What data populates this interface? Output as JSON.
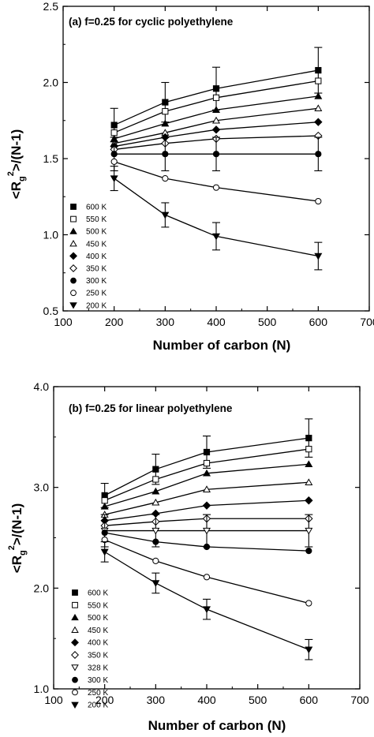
{
  "chart_data": [
    {
      "type": "line",
      "title": "(a) f=0.25 for cyclic polyethylene",
      "xlabel": "Number of carbon (N)",
      "ylabel": "<R_g^2>/(N-1)",
      "ylabel_parts": {
        "main": "<R",
        "sub": "g",
        "sup": "2",
        "tail": ">/(N-1)"
      },
      "xlim": [
        100,
        700
      ],
      "ylim": [
        0.5,
        2.5
      ],
      "x_ticks": [
        100,
        200,
        300,
        400,
        500,
        600,
        700
      ],
      "y_ticks": [
        "0.5",
        "1.0",
        "1.5",
        "2.0",
        "2.5"
      ],
      "x": [
        200,
        300,
        400,
        600
      ],
      "grid": false,
      "legend_position": "lower-left",
      "series": [
        {
          "name": "600 K",
          "marker": "square-filled",
          "values": [
            1.72,
            1.87,
            1.96,
            2.08
          ],
          "errors": [
            0.11,
            0.13,
            0.14,
            0.15
          ]
        },
        {
          "name": "550 K",
          "marker": "square-open",
          "values": [
            1.67,
            1.81,
            1.9,
            2.01
          ]
        },
        {
          "name": "500 K",
          "marker": "triangle-filled",
          "values": [
            1.63,
            1.73,
            1.82,
            1.91
          ]
        },
        {
          "name": "450 K",
          "marker": "triangle-open",
          "values": [
            1.6,
            1.67,
            1.75,
            1.83
          ]
        },
        {
          "name": "400 K",
          "marker": "diamond-filled",
          "values": [
            1.58,
            1.64,
            1.69,
            1.74
          ]
        },
        {
          "name": "350 K",
          "marker": "diamond-open",
          "values": [
            1.56,
            1.6,
            1.63,
            1.65
          ]
        },
        {
          "name": "300 K",
          "marker": "circle-filled",
          "values": [
            1.53,
            1.53,
            1.53,
            1.53
          ],
          "errors": [
            0.11,
            0.11,
            0.11,
            0.11
          ]
        },
        {
          "name": "250 K",
          "marker": "circle-open",
          "values": [
            1.48,
            1.37,
            1.31,
            1.22
          ]
        },
        {
          "name": "200 K",
          "marker": "triangle-down-filled",
          "values": [
            1.37,
            1.13,
            0.99,
            0.86
          ],
          "errors": [
            0.08,
            0.08,
            0.09,
            0.09
          ]
        }
      ]
    },
    {
      "type": "line",
      "title": "(b) f=0.25 for linear polyethylene",
      "xlabel": "Number of carbon (N)",
      "ylabel": "<R_g^2>/(N-1)",
      "ylabel_parts": {
        "main": "<R",
        "sub": "g",
        "sup": "2",
        "tail": ">/(N-1)"
      },
      "xlim": [
        100,
        700
      ],
      "ylim": [
        1.0,
        4.0
      ],
      "x_ticks": [
        100,
        200,
        300,
        400,
        500,
        600,
        700
      ],
      "y_ticks": [
        "1.0",
        "2.0",
        "3.0",
        "4.0"
      ],
      "x": [
        200,
        300,
        400,
        600
      ],
      "grid": false,
      "legend_position": "lower-left",
      "series": [
        {
          "name": "600 K",
          "marker": "square-filled",
          "values": [
            2.92,
            3.18,
            3.35,
            3.49
          ],
          "errors": [
            0.12,
            0.15,
            0.16,
            0.19
          ]
        },
        {
          "name": "550 K",
          "marker": "square-open",
          "values": [
            2.87,
            3.08,
            3.24,
            3.38
          ]
        },
        {
          "name": "500 K",
          "marker": "triangle-filled",
          "values": [
            2.81,
            2.96,
            3.14,
            3.23
          ]
        },
        {
          "name": "450 K",
          "marker": "triangle-open",
          "values": [
            2.73,
            2.85,
            2.98,
            3.05
          ]
        },
        {
          "name": "400 K",
          "marker": "diamond-filled",
          "values": [
            2.67,
            2.74,
            2.82,
            2.87
          ]
        },
        {
          "name": "350 K",
          "marker": "diamond-open",
          "values": [
            2.62,
            2.66,
            2.69,
            2.69
          ]
        },
        {
          "name": "328 K",
          "marker": "triangle-down-open",
          "values": [
            2.57,
            2.57,
            2.57,
            2.57
          ],
          "errors": [
            0.16,
            0.16,
            0.16,
            0.16
          ]
        },
        {
          "name": "300 K",
          "marker": "circle-filled",
          "values": [
            2.55,
            2.46,
            2.41,
            2.37
          ]
        },
        {
          "name": "250 K",
          "marker": "circle-open",
          "values": [
            2.48,
            2.27,
            2.11,
            1.85
          ]
        },
        {
          "name": "200 K",
          "marker": "triangle-down-filled",
          "values": [
            2.36,
            2.05,
            1.79,
            1.39
          ],
          "errors": [
            0.1,
            0.1,
            0.1,
            0.1
          ]
        }
      ]
    }
  ]
}
